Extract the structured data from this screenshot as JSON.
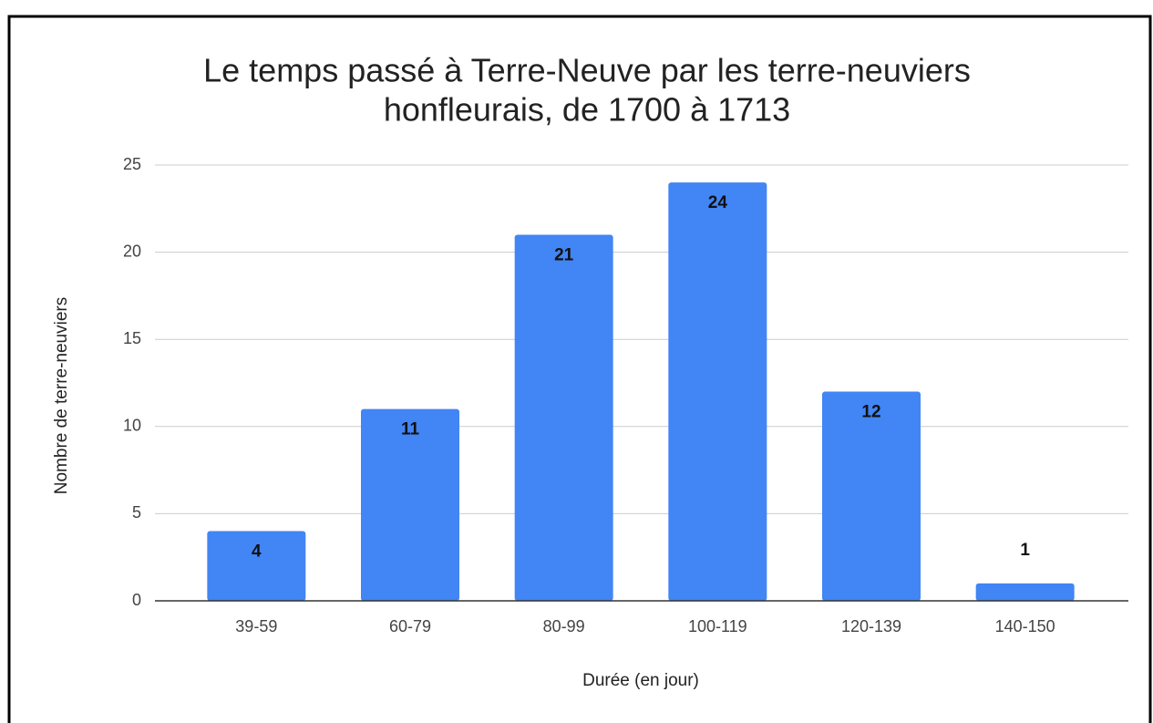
{
  "chart_data": {
    "type": "bar",
    "title": [
      "Le temps passé à Terre-Neuve par les terre-neuviers",
      "honfleurais, de 1700 à 1713"
    ],
    "x_label": "Durée (en jour)",
    "y_label": "Nombre de terre-neuviers",
    "categories": [
      "39-59",
      "60-79",
      "80-99",
      "100-119",
      "120-139",
      "140-150"
    ],
    "values": [
      4,
      11,
      21,
      24,
      12,
      1
    ],
    "color": "#4285f4",
    "ylim": [
      0,
      25
    ],
    "yticks": [
      0,
      5,
      10,
      15,
      20,
      25
    ],
    "grid": true
  }
}
